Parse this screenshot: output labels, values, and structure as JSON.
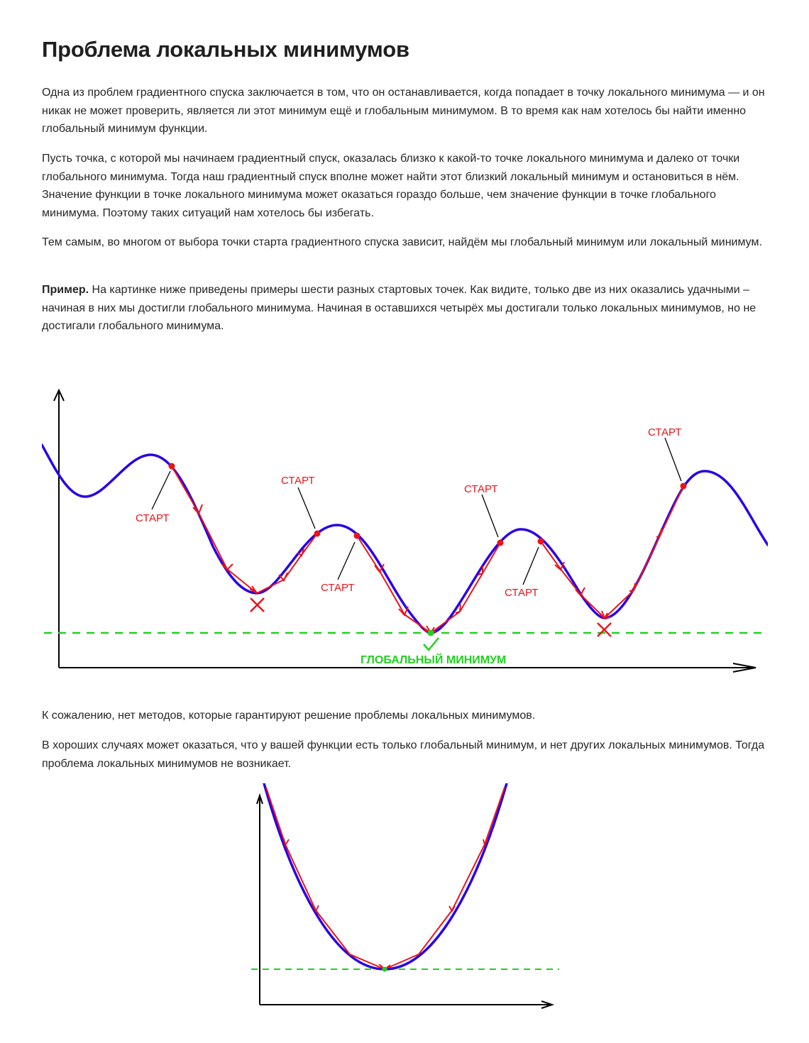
{
  "title": "Проблема локальных минимумов",
  "paragraphs": {
    "p1": "Одна из проблем градиентного спуска заключается в том, что он останавливается, когда попадает в точку локального минимума — и он никак не может проверить, является ли этот минимум ещё и глобальным минимумом. В то время как нам хотелось бы найти именно глобальный минимум функции.",
    "p2": "Пусть точка, с которой мы начинаем градиентный спуск, оказалась близко к какой-то точке локального минимума и далеко от точки глобального минимума. Тогда наш градиентный спуск вполне может найти этот близкий локальный минимум и остановиться в нём. Значение функции в точке локального минимума может оказаться гораздо больше, чем значение функции в точке глобального минимума. Поэтому таких ситуаций нам хотелось бы избегать.",
    "p3": "Тем самым, во многом от выбора точки старта градиентного спуска зависит, найдём мы глобальный минимум или локальный минимум.",
    "p4_bold": "Пример.",
    "p4_rest": " На картинке ниже приведены примеры шести разных стартовых точек. Как видите, только две из них оказались удачными – начиная в них мы достигли глобального минимума. Начиная в оставшихся четырёх мы достигали только локальных минимумов, но не достигали глобального минимума.",
    "p5": "К сожалению, нет методов, которые гарантируют решение проблемы локальных минимумов.",
    "p6": "В хороших случаях может оказаться, что у вашей функции есть только глобальный минимум, и нет других локальных минимумов. Тогда проблема локальных минимумов не возникает."
  },
  "figure1": {
    "start_label": "СТАРТ",
    "global_min_label": "ГЛОБАЛЬНЫЙ МИНИМУМ",
    "colors": {
      "curve": "#2a00e6",
      "descent": "#e8141a",
      "global": "#1fd21f",
      "axis": "#000000"
    }
  },
  "figure2": {
    "colors": {
      "curve": "#2a00e6",
      "descent": "#e8141a",
      "global": "#1fd21f",
      "axis": "#000000"
    }
  }
}
